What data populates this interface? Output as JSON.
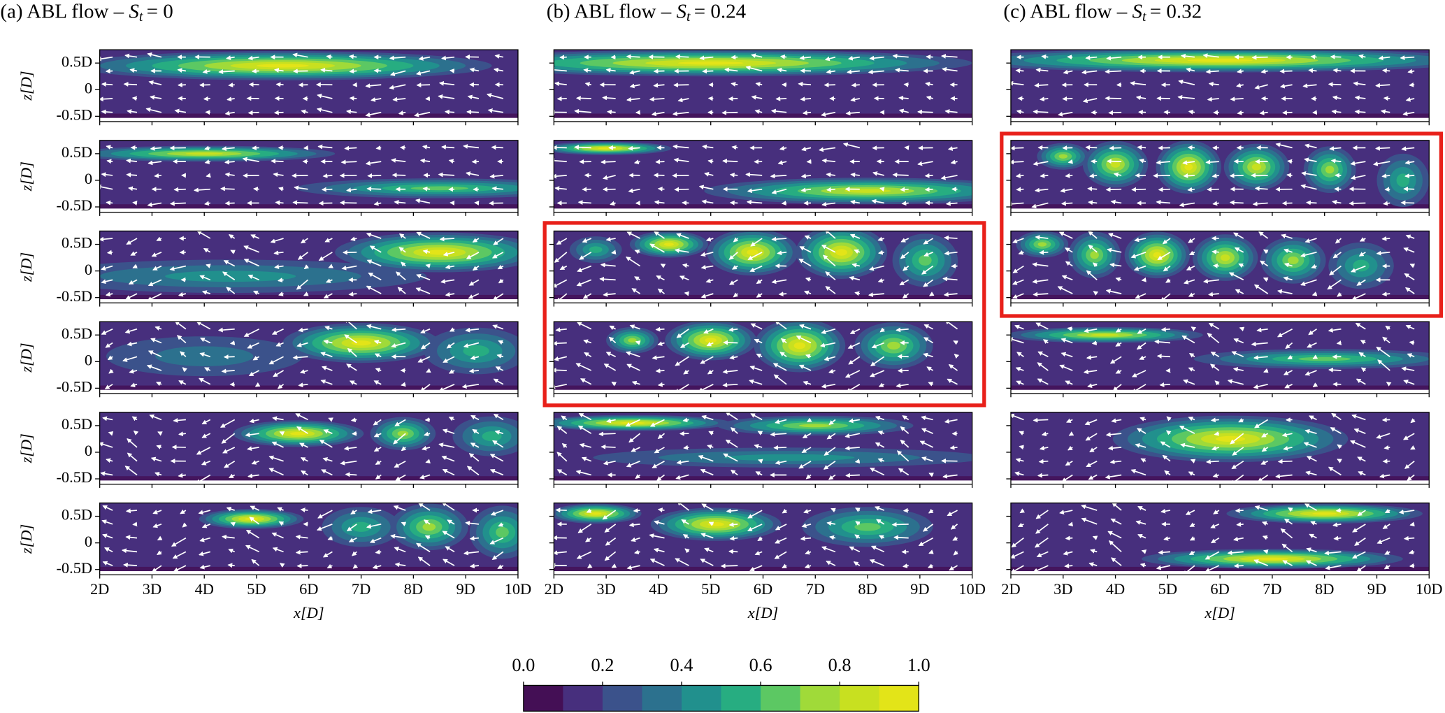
{
  "chart_data": [
    {
      "type": "contour",
      "title": "(a) ABL flow –",
      "parameter": "S",
      "parameter_subscript": "t",
      "parameter_value": "= 0",
      "xlabel": "x[D]",
      "ylabel": "z[D]",
      "xlim": [
        2,
        10
      ],
      "ylim": [
        -0.6,
        0.75
      ],
      "xticks": [
        {
          "value": 2,
          "label": "2D"
        },
        {
          "value": 3,
          "label": "3D"
        },
        {
          "value": 4,
          "label": "4D"
        },
        {
          "value": 5,
          "label": "5D"
        },
        {
          "value": 6,
          "label": "6D"
        },
        {
          "value": 7,
          "label": "7D"
        },
        {
          "value": 8,
          "label": "8D"
        },
        {
          "value": 9,
          "label": "9D"
        },
        {
          "value": 10,
          "label": "10D"
        }
      ],
      "yticks": [
        {
          "value": 0.5,
          "label": "0.5D"
        },
        0,
        {
          "value": -0.5,
          "label": "-0.5D"
        }
      ]
    },
    {
      "type": "contour",
      "title": "(b) ABL flow –",
      "parameter": "S",
      "parameter_subscript": "t",
      "parameter_value": "= 0.24",
      "xlabel": "x[D]",
      "xlim": [
        2,
        10
      ],
      "ylim": [
        -0.6,
        0.75
      ],
      "xticks": [
        {
          "value": 2,
          "label": "2D"
        },
        {
          "value": 3,
          "label": "3D"
        },
        {
          "value": 4,
          "label": "4D"
        },
        {
          "value": 5,
          "label": "5D"
        },
        {
          "value": 6,
          "label": "6D"
        },
        {
          "value": 7,
          "label": "7D"
        },
        {
          "value": 8,
          "label": "8D"
        },
        {
          "value": 9,
          "label": "9D"
        },
        {
          "value": 10,
          "label": "10D"
        }
      ],
      "yticks": [
        0.5,
        0,
        -0.5
      ]
    },
    {
      "type": "contour",
      "title": "(c) ABL flow –",
      "parameter": "S",
      "parameter_subscript": "t",
      "parameter_value": "= 0.32",
      "xlabel": "x[D]",
      "xlim": [
        2,
        10
      ],
      "ylim": [
        -0.6,
        0.75
      ],
      "xticks": [
        {
          "value": 2,
          "label": "2D"
        },
        {
          "value": 3,
          "label": "3D"
        },
        {
          "value": 4,
          "label": "4D"
        },
        {
          "value": 5,
          "label": "5D"
        },
        {
          "value": 6,
          "label": "6D"
        },
        {
          "value": 7,
          "label": "7D"
        },
        {
          "value": 8,
          "label": "8D"
        },
        {
          "value": 9,
          "label": "9D"
        },
        {
          "value": 10,
          "label": "10D"
        }
      ],
      "yticks": [
        0.5,
        0,
        -0.5
      ]
    },
    {
      "type": "colorbar",
      "lim": [
        0,
        1
      ],
      "ticks": [
        {
          "value": 0,
          "label": "0.0"
        },
        0.2,
        0.4,
        0.6,
        0.8,
        {
          "value": 1,
          "label": "1.0"
        }
      ],
      "colors": [
        "#440f55",
        "#472f7d",
        "#3b528b",
        "#2c718e",
        "#21908d",
        "#27ad81",
        "#5cc863",
        "#a0da39",
        "#c8e020",
        "#e3e418"
      ]
    }
  ]
}
